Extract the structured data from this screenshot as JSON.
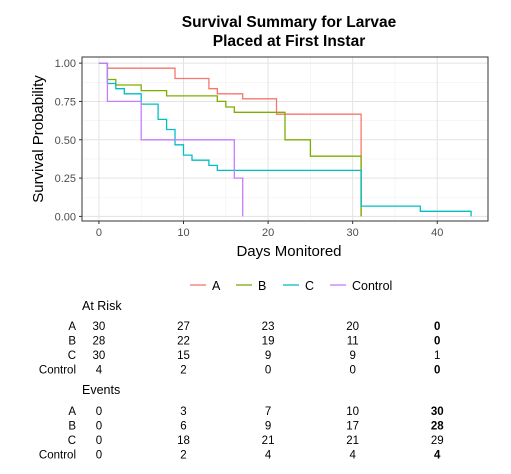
{
  "chart_data": {
    "type": "line",
    "title_lines": [
      "Survival Summary for Larvae",
      "Placed at First Instar"
    ],
    "xlabel": "Days Monitored",
    "ylabel": "Survival Probability",
    "xlim": [
      -2,
      46
    ],
    "ylim": [
      -0.03,
      1.04
    ],
    "x_ticks": [
      "0",
      "10",
      "20",
      "30",
      "40"
    ],
    "x_tick_values": [
      0,
      10,
      20,
      30,
      40
    ],
    "y_ticks": [
      "0.00",
      "0.25",
      "0.50",
      "0.75",
      "1.00"
    ],
    "y_tick_values": [
      0,
      0.25,
      0.5,
      0.75,
      1
    ],
    "grid": true,
    "legend_position": "bottom",
    "series": [
      {
        "name": "A",
        "color": "#F8766D",
        "x": [
          0,
          1,
          9,
          13,
          14,
          17,
          21,
          31,
          31
        ],
        "y": [
          1.0,
          0.967,
          0.9,
          0.833,
          0.8,
          0.767,
          0.667,
          0.667,
          0.0
        ]
      },
      {
        "name": "B",
        "color": "#7CAE00",
        "x": [
          0,
          1,
          2,
          5,
          8,
          14,
          15,
          16,
          22,
          25,
          31,
          31
        ],
        "y": [
          1.0,
          0.893,
          0.857,
          0.821,
          0.786,
          0.75,
          0.714,
          0.679,
          0.5,
          0.393,
          0.393,
          0.0
        ]
      },
      {
        "name": "C",
        "color": "#00BFC4",
        "x": [
          0,
          1,
          2,
          3,
          5,
          7,
          8,
          9,
          10,
          11,
          13,
          14,
          16,
          31,
          38,
          44
        ],
        "y": [
          1.0,
          0.867,
          0.833,
          0.8,
          0.733,
          0.633,
          0.567,
          0.467,
          0.4,
          0.367,
          0.333,
          0.3,
          0.3,
          0.067,
          0.033,
          0.0
        ]
      },
      {
        "name": "Control",
        "color": "#C77CFF",
        "x": [
          0,
          1,
          5,
          16,
          17
        ],
        "y": [
          1.0,
          0.75,
          0.5,
          0.25,
          0.0
        ]
      }
    ]
  },
  "legend": [
    "A",
    "B",
    "C",
    "Control"
  ],
  "risk_table": {
    "at_risk_title": "At Risk",
    "events_title": "Events",
    "strata": [
      "A",
      "B",
      "C",
      "Control"
    ],
    "at_risk": [
      [
        "30",
        "27",
        "23",
        "20",
        "0"
      ],
      [
        "28",
        "22",
        "19",
        "11",
        "0"
      ],
      [
        "30",
        "15",
        "9",
        "9",
        "1"
      ],
      [
        "4",
        "2",
        "0",
        "0",
        "0"
      ]
    ],
    "at_risk_bold": [
      [
        false,
        false,
        false,
        false,
        true
      ],
      [
        false,
        false,
        false,
        false,
        true
      ],
      [
        false,
        false,
        false,
        false,
        false
      ],
      [
        false,
        false,
        false,
        false,
        true
      ]
    ],
    "events": [
      [
        "0",
        "3",
        "7",
        "10",
        "30"
      ],
      [
        "0",
        "6",
        "9",
        "17",
        "28"
      ],
      [
        "0",
        "18",
        "21",
        "21",
        "29"
      ],
      [
        "0",
        "2",
        "4",
        "4",
        "4"
      ]
    ],
    "events_bold": [
      [
        false,
        false,
        false,
        false,
        true
      ],
      [
        false,
        false,
        false,
        false,
        true
      ],
      [
        false,
        false,
        false,
        false,
        false
      ],
      [
        false,
        false,
        false,
        false,
        true
      ]
    ]
  }
}
